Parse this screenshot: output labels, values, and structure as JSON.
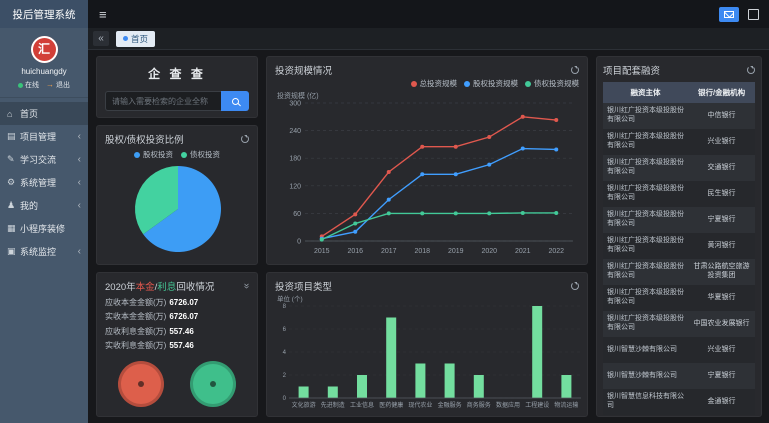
{
  "app": {
    "title": "投后管理系统"
  },
  "icon_glyphs": {
    "hamburger-icon": "≡",
    "collapse-icon": "«",
    "expand-icon": "»",
    "home-icon": "⌂",
    "folder-icon": "▤",
    "book-icon": "✎",
    "gear-icon": "⚙",
    "user-icon": "♟",
    "grid-icon": "▦",
    "monitor-icon": "▣",
    "logout-arrow-icon": "→"
  },
  "sidebar": {
    "user": {
      "logo_glyph": "汇",
      "name": "huichuangdy",
      "online_label": "在线",
      "logout_label": "退出"
    },
    "items": [
      {
        "key": "home",
        "label": "首页",
        "icon": "home-icon",
        "arrow": false,
        "active": true
      },
      {
        "key": "projects",
        "label": "项目管理",
        "icon": "folder-icon",
        "arrow": true,
        "active": false
      },
      {
        "key": "learning",
        "label": "学习交流",
        "icon": "book-icon",
        "arrow": true,
        "active": false
      },
      {
        "key": "system",
        "label": "系统管理",
        "icon": "gear-icon",
        "arrow": true,
        "active": false
      },
      {
        "key": "mine",
        "label": "我的",
        "icon": "user-icon",
        "arrow": true,
        "active": false
      },
      {
        "key": "miniapp",
        "label": "小程序装修",
        "icon": "grid-icon",
        "arrow": false,
        "active": false
      },
      {
        "key": "monitor",
        "label": "系统监控",
        "icon": "monitor-icon",
        "arrow": true,
        "active": false
      }
    ]
  },
  "tabbar": {
    "tabs": [
      {
        "label": "首页",
        "active": true
      }
    ]
  },
  "qichacha": {
    "title": "企 查 查",
    "search_placeholder": "请输入需要检索的企业全称"
  },
  "pie_card": {
    "title": "股权/债权投资比例"
  },
  "recovery_card": {
    "title_year": "2020年",
    "title_principal": "本金",
    "title_slash": "/",
    "title_interest": "利息",
    "title_rest": "回收情况",
    "rows": [
      {
        "label": "应收本金金额(万)",
        "value": "6726.07"
      },
      {
        "label": "实收本金金额(万)",
        "value": "6726.07"
      },
      {
        "label": "应收利息金额(万)",
        "value": "557.46"
      },
      {
        "label": "实收利息金额(万)",
        "value": "557.46"
      }
    ],
    "gauges": [
      {
        "name": "principal-gauge",
        "color": "#dd5f4b"
      },
      {
        "name": "interest-gauge",
        "color": "#3fbf8b"
      }
    ]
  },
  "line_card": {
    "title": "投资规模情况"
  },
  "bar_card": {
    "title": "投资项目类型"
  },
  "table_card": {
    "title": "项目配套融资"
  },
  "chart_data": [
    {
      "type": "pie",
      "title": "股权/债权投资比例",
      "labels": [
        "股权投资",
        "债权投资"
      ],
      "values": [
        65,
        35
      ],
      "colors": [
        "#3d9df5",
        "#43d2a0"
      ],
      "legend_position": "top"
    },
    {
      "type": "line",
      "title": "投资规模情况",
      "ylabel": "投资规模 (亿)",
      "x": [
        "2015",
        "2016",
        "2017",
        "2018",
        "2019",
        "2020",
        "2021",
        "2022"
      ],
      "ylim": [
        0,
        300
      ],
      "yticks": [
        0,
        60,
        120,
        180,
        240,
        300
      ],
      "grid": true,
      "legend_position": "top-right",
      "series": [
        {
          "name": "总投资规模",
          "color": "#e0584e",
          "values": [
            10,
            58,
            150,
            205,
            205,
            226,
            270,
            263
          ]
        },
        {
          "name": "股权投资规模",
          "color": "#409eff",
          "values": [
            5,
            20,
            90,
            145,
            145,
            166,
            201,
            199
          ]
        },
        {
          "name": "债权投资规模",
          "color": "#42c998",
          "values": [
            3,
            38,
            60,
            60,
            60,
            60,
            61,
            61
          ]
        }
      ]
    },
    {
      "type": "bar",
      "title": "投资项目类型",
      "unit_label": "单位 (个)",
      "color": "#73de9f",
      "ylim": [
        0,
        8
      ],
      "yticks": [
        0,
        2,
        4,
        6,
        8
      ],
      "categories": [
        "文化旅游",
        "先进制造",
        "工业信息",
        "医药健康",
        "现代农业",
        "金融服务",
        "商务服务",
        "数据应用",
        "工程建设",
        "物流运输"
      ],
      "values": [
        1,
        1,
        2,
        7,
        3,
        3,
        2,
        0,
        8,
        2
      ]
    },
    {
      "type": "table",
      "title": "项目配套融资",
      "columns": [
        "融资主体",
        "银行/金融机构"
      ],
      "rows": [
        [
          "银川红广投资本级投股份有限公司",
          "中信银行"
        ],
        [
          "银川红广投资本级投股份有限公司",
          "兴业银行"
        ],
        [
          "银川红广投资本级投股份有限公司",
          "交通银行"
        ],
        [
          "银川红广投资本级投股份有限公司",
          "民生银行"
        ],
        [
          "银川红广投资本级投股份有限公司",
          "宁夏银行"
        ],
        [
          "银川红广投资本级投股份有限公司",
          "黄河银行"
        ],
        [
          "银川红广投资本级投股份有限公司",
          "甘肃公路航空旅游投资集团"
        ],
        [
          "银川红广投资本级投股份有限公司",
          "华夏银行"
        ],
        [
          "银川红广投资本级投股份有限公司",
          "中国农业发展银行"
        ],
        [
          "银川智慧沙棘有限公司",
          "兴业银行"
        ],
        [
          "银川智慧沙棘有限公司",
          "宁夏银行"
        ],
        [
          "银川智慧信息科技有限公司",
          "金通银行"
        ]
      ]
    }
  ]
}
